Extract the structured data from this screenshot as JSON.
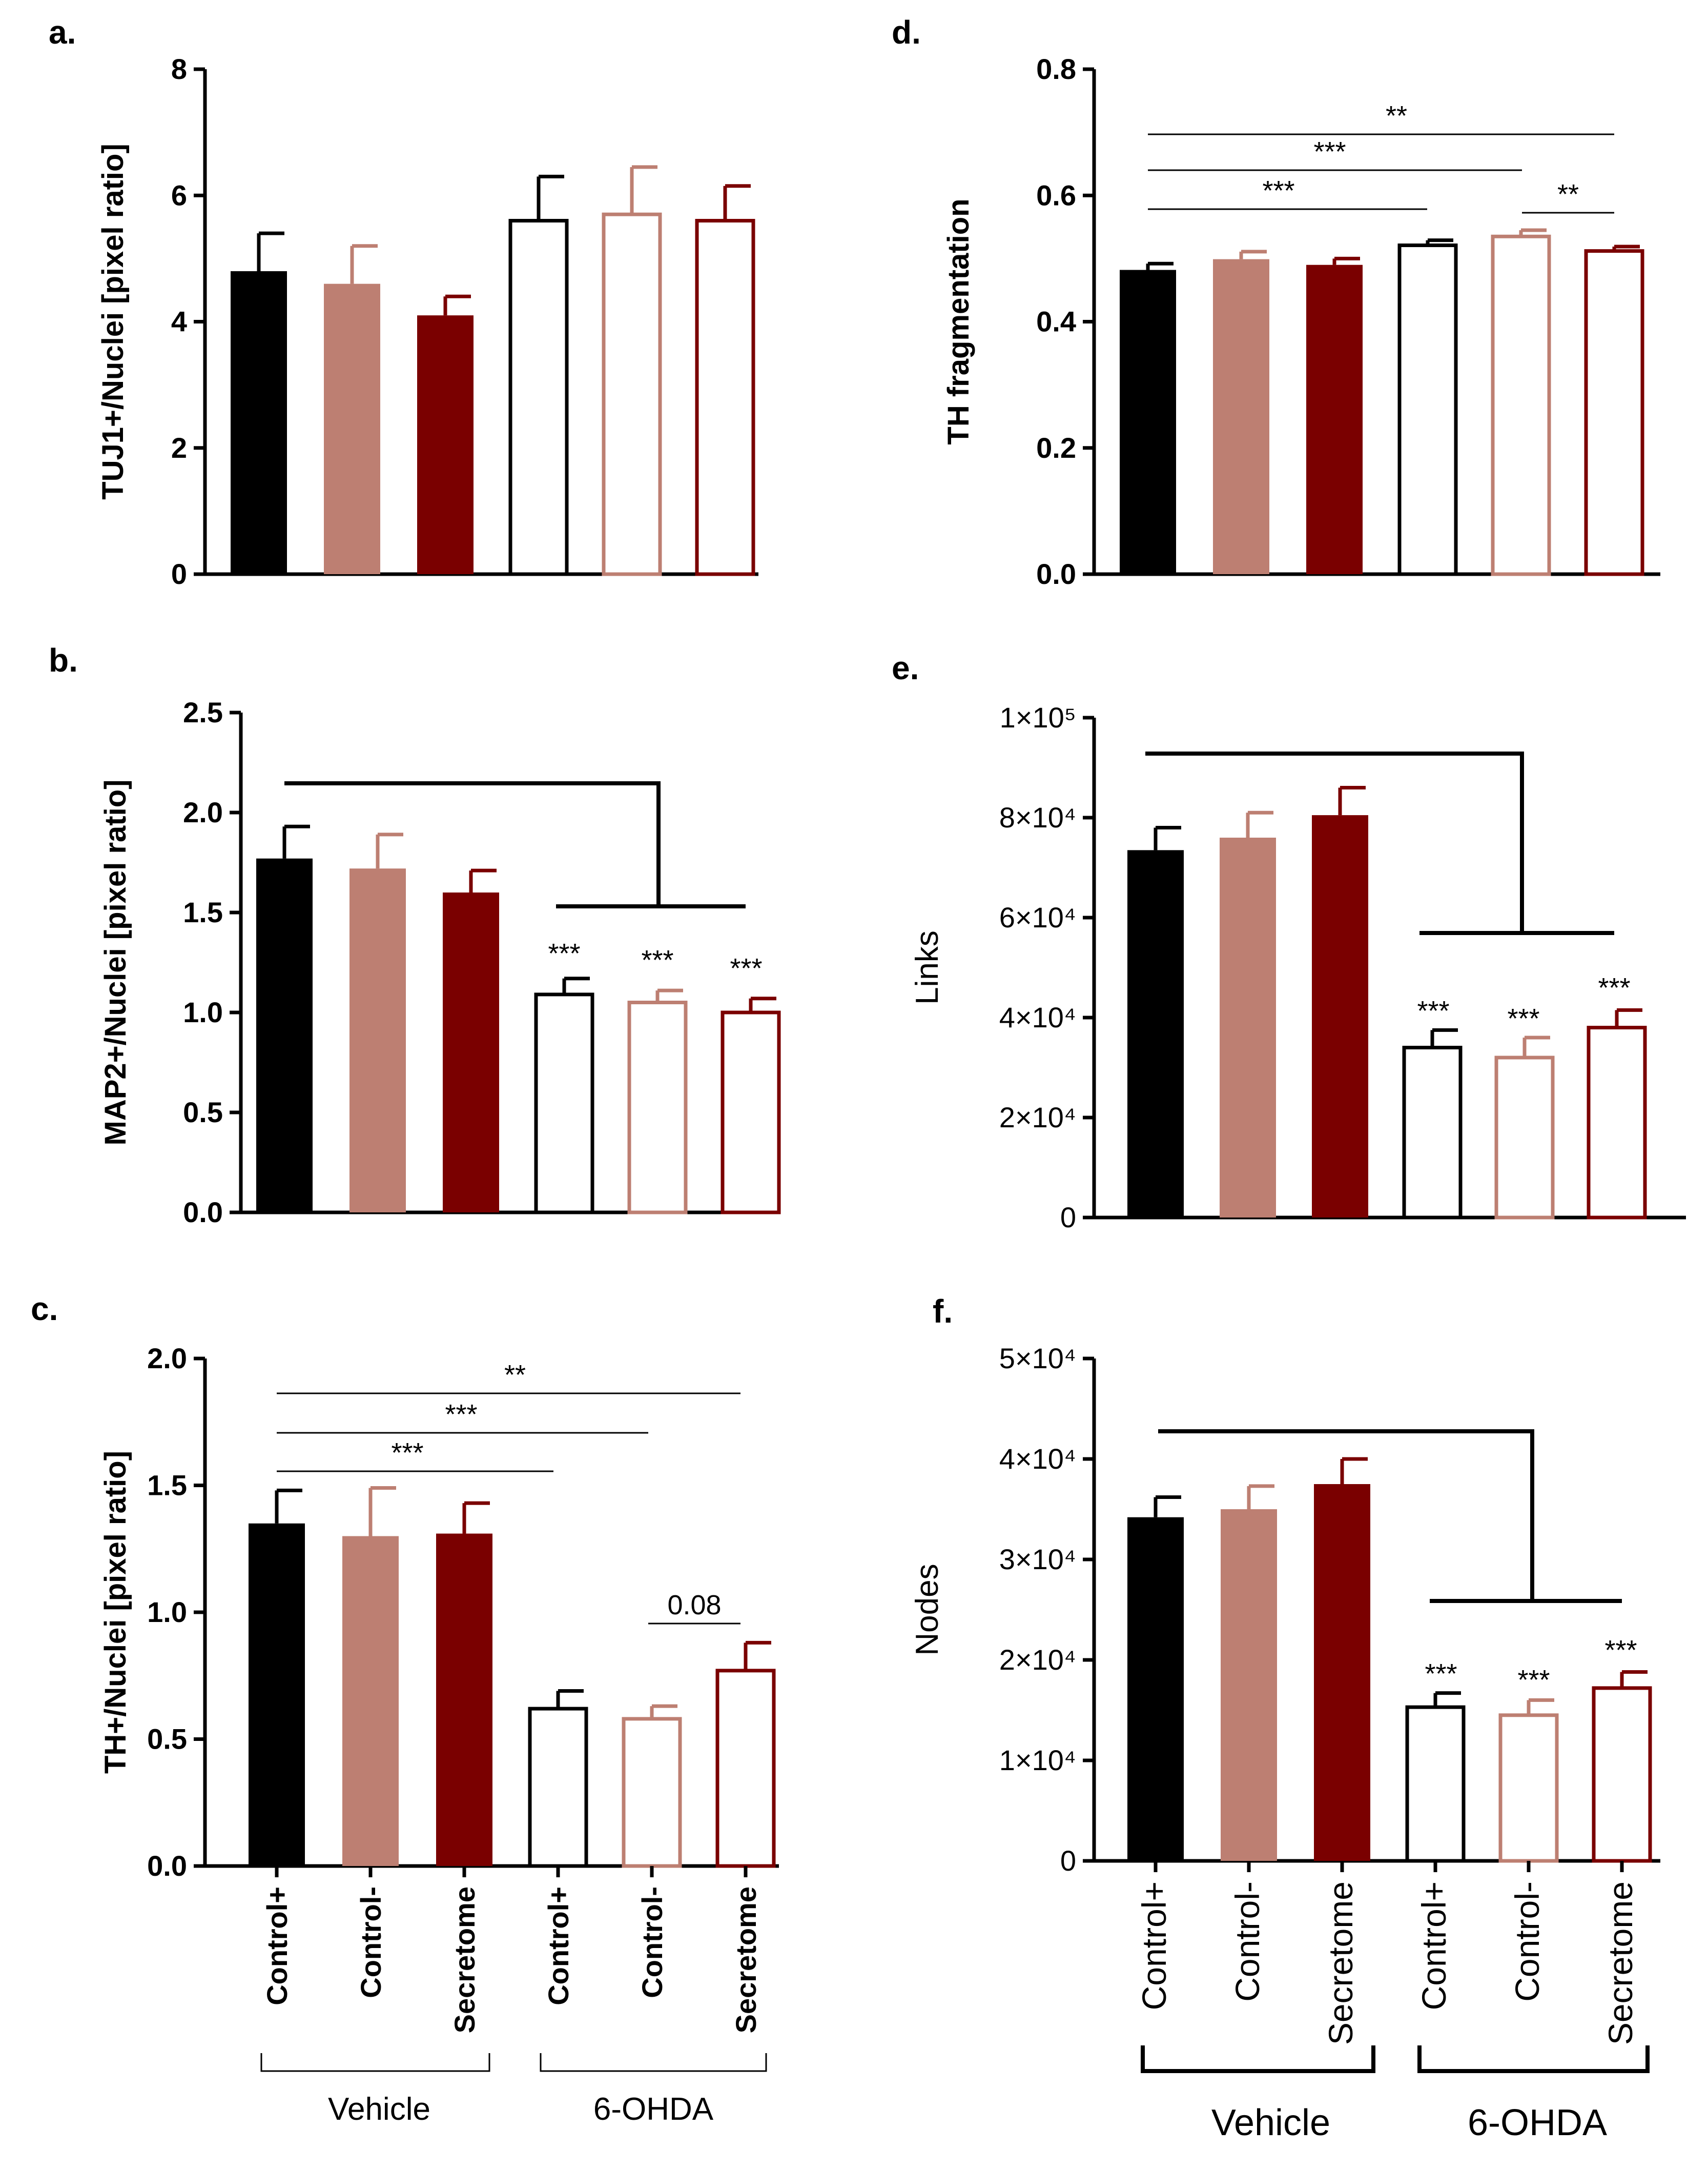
{
  "colors": {
    "control_plus": "#000000",
    "control_minus": "#bd7f72",
    "secretome": "#7a0000"
  },
  "groups": {
    "vehicle": "Vehicle",
    "ohda": "6-OHDA"
  },
  "categories": [
    "Control+",
    "Control-",
    "Secretome",
    "Control+",
    "Control-",
    "Secretome"
  ],
  "chart_data": [
    {
      "panel": "a.",
      "type": "bar",
      "ylabel": "TUJ1+/Nuclei [pixel ratio]",
      "ylim": [
        0,
        8
      ],
      "yticks": [
        "0",
        "2",
        "4",
        "6",
        "8"
      ],
      "categories": [
        "Control+",
        "Control-",
        "Secretome",
        "Control+",
        "Control-",
        "Secretome"
      ],
      "values": [
        4.8,
        4.6,
        4.1,
        5.6,
        5.7,
        5.6
      ],
      "errors": [
        0.6,
        0.6,
        0.3,
        0.7,
        0.75,
        0.55
      ],
      "annotations": []
    },
    {
      "panel": "b.",
      "type": "bar",
      "ylabel": "MAP2+/Nuclei [pixel ratio]",
      "ylim": [
        0,
        2.5
      ],
      "yticks": [
        "0.0",
        "0.5",
        "1.0",
        "1.5",
        "2.0",
        "2.5"
      ],
      "categories": [
        "Control+",
        "Control-",
        "Secretome",
        "Control+",
        "Control-",
        "Secretome"
      ],
      "values": [
        1.77,
        1.72,
        1.6,
        1.09,
        1.05,
        1.0
      ],
      "errors": [
        0.16,
        0.17,
        0.11,
        0.08,
        0.06,
        0.07
      ],
      "annotations": [
        "***",
        "***",
        "***"
      ]
    },
    {
      "panel": "c.",
      "type": "bar",
      "ylabel": "TH+/Nuclei [pixel ratio]",
      "ylim": [
        0,
        2.0
      ],
      "yticks": [
        "0.0",
        "0.5",
        "1.0",
        "1.5",
        "2.0"
      ],
      "categories": [
        "Control+",
        "Control-",
        "Secretome",
        "Control+",
        "Control-",
        "Secretome"
      ],
      "values": [
        1.35,
        1.3,
        1.31,
        0.62,
        0.58,
        0.77
      ],
      "errors": [
        0.13,
        0.19,
        0.12,
        0.07,
        0.05,
        0.11
      ],
      "annotations": [
        "**",
        "***",
        "***",
        "0.08"
      ]
    },
    {
      "panel": "d.",
      "type": "bar",
      "ylabel": "TH fragmentation",
      "ylim": [
        0,
        0.8
      ],
      "yticks": [
        "0.0",
        "0.2",
        "0.4",
        "0.6",
        "0.8"
      ],
      "categories": [
        "Control+",
        "Control-",
        "Secretome",
        "Control+",
        "Control-",
        "Secretome"
      ],
      "values": [
        0.482,
        0.499,
        0.49,
        0.521,
        0.535,
        0.512
      ],
      "errors": [
        0.01,
        0.012,
        0.01,
        0.008,
        0.01,
        0.007
      ],
      "annotations": [
        "**",
        "***",
        "***",
        "**"
      ]
    },
    {
      "panel": "e.",
      "type": "bar",
      "ylabel": "Links",
      "ylim": [
        0,
        100000
      ],
      "yticks": [
        "0",
        "2×10⁴",
        "4×10⁴",
        "6×10⁴",
        "8×10⁴",
        "1×10⁵"
      ],
      "categories": [
        "Control+",
        "Control-",
        "Secretome",
        "Control+",
        "Control-",
        "Secretome"
      ],
      "values": [
        73500,
        76000,
        80500,
        34000,
        32000,
        38000
      ],
      "errors": [
        4500,
        5000,
        5500,
        3500,
        4000,
        3500
      ],
      "annotations": [
        "***",
        "***",
        "***"
      ]
    },
    {
      "panel": "f.",
      "type": "bar",
      "ylabel": "Nodes",
      "ylim": [
        0,
        50000
      ],
      "yticks": [
        "0",
        "1×10⁴",
        "2×10⁴",
        "3×10⁴",
        "4×10⁴",
        "5×10⁴"
      ],
      "categories": [
        "Control+",
        "Control-",
        "Secretome",
        "Control+",
        "Control-",
        "Secretome"
      ],
      "values": [
        34200,
        35000,
        37500,
        15300,
        14500,
        17200
      ],
      "errors": [
        2000,
        2300,
        2500,
        1400,
        1500,
        1600
      ],
      "annotations": [
        "***",
        "***",
        "***"
      ]
    }
  ]
}
